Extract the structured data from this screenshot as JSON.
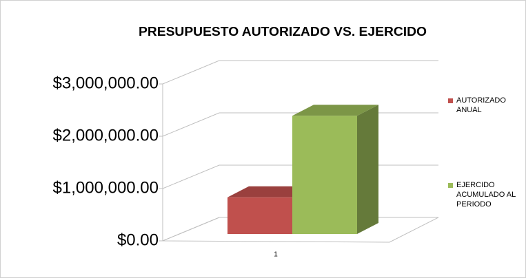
{
  "chart_data": {
    "type": "bar3d",
    "title": "PRESUPUESTO AUTORIZADO VS. EJERCIDO",
    "categories": [
      "1"
    ],
    "series": [
      {
        "name": "AUTORIZADO ANUAL",
        "color": "#c0504d",
        "values": [
          700000
        ]
      },
      {
        "name": "EJERCIDO ACUMULADO AL PERIODO",
        "color": "#9bbb59",
        "values": [
          2260000
        ]
      }
    ],
    "ylim": [
      0,
      3000000
    ],
    "yticks": [
      {
        "value": 0,
        "label": "$0.00"
      },
      {
        "value": 1000000,
        "label": "$1,000,000.00"
      },
      {
        "value": 2000000,
        "label": "$2,000,000.00"
      },
      {
        "value": 3000000,
        "label": "$3,000,000.00"
      }
    ],
    "grid": true,
    "legend": "right"
  }
}
